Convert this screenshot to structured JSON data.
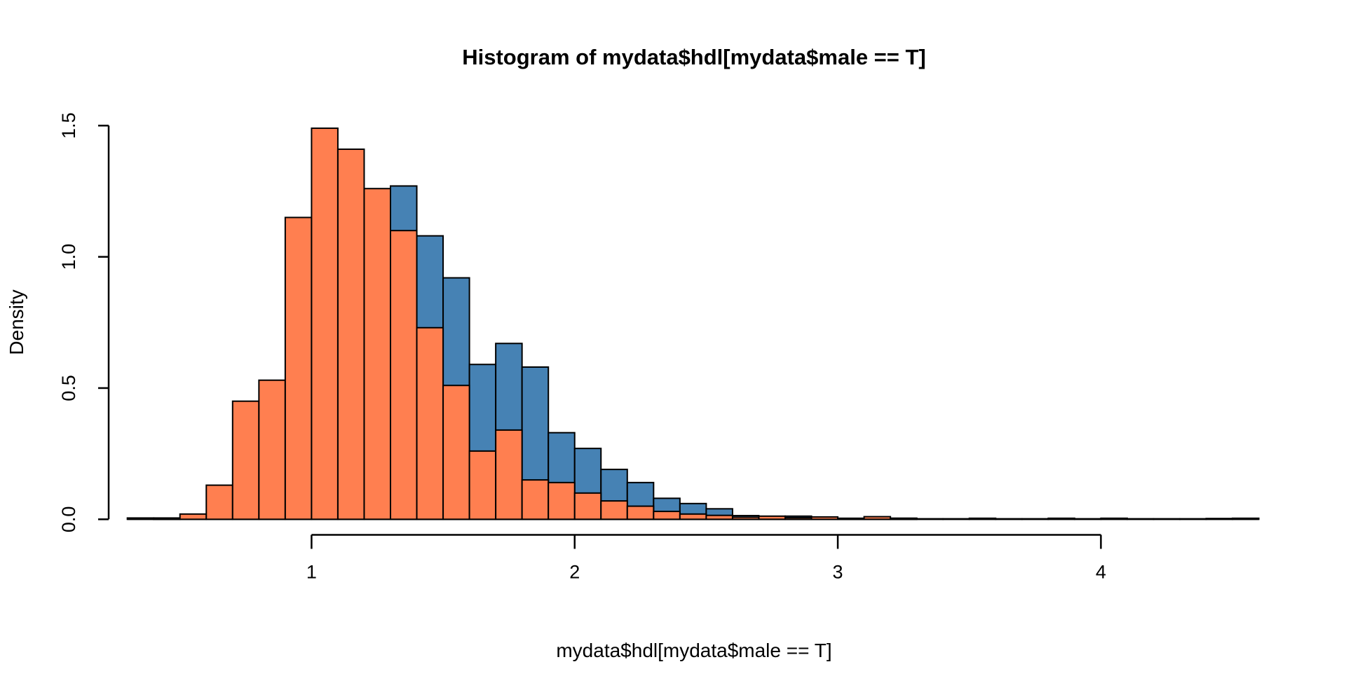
{
  "chart_data": {
    "type": "bar",
    "subtype": "overlaid-density-histogram",
    "title": "Histogram of mydata$hdl[mydata$male == T]",
    "xlabel": "mydata$hdl[mydata$male == T]",
    "ylabel": "Density",
    "grid": false,
    "legend": "none",
    "x_tick_labels": [
      "1",
      "2",
      "3",
      "4"
    ],
    "x_tick_values": [
      1,
      2,
      3,
      4
    ],
    "y_tick_labels": [
      "0.0",
      "0.5",
      "1.0",
      "1.5"
    ],
    "y_tick_values": [
      0.0,
      0.5,
      1.0,
      1.5
    ],
    "xlim": [
      0.3,
      4.6
    ],
    "ylim": [
      0,
      1.5
    ],
    "bin_width": 0.1,
    "bin_left_edges_start": 0.3,
    "bar_border_color": "#000000",
    "axis_color": "#000000",
    "background_color": "#ffffff",
    "series": [
      {
        "name": "blue-histogram-behind",
        "color": "#4682B4",
        "baseline_range": [
          0.3,
          4.6
        ],
        "values": [
          0.005,
          0.002,
          0,
          0,
          0,
          0,
          0,
          0,
          0,
          0,
          1.27,
          1.08,
          0.92,
          0.59,
          0.67,
          0.58,
          0.33,
          0.27,
          0.19,
          0.14,
          0.08,
          0.06,
          0.04,
          0.014,
          0.004,
          0.012,
          0.002,
          0.004,
          0.002,
          0.004,
          0.002,
          0.002,
          0.004,
          0.002,
          0.002,
          0.004,
          0.002,
          0.004,
          0.002,
          0.002,
          0.002,
          0.003,
          0.004
        ]
      },
      {
        "name": "orange-histogram-front",
        "color": "#FF7F50",
        "baseline_range": [
          0.4,
          3.3
        ],
        "values": [
          0,
          0.005,
          0.02,
          0.13,
          0.45,
          0.53,
          1.15,
          1.49,
          1.41,
          1.26,
          1.1,
          0.73,
          0.51,
          0.26,
          0.34,
          0.15,
          0.14,
          0.1,
          0.07,
          0.05,
          0.03,
          0.02,
          0.015,
          0.008,
          0.012,
          0.006,
          0.009,
          0.002,
          0.01,
          0.004,
          0,
          0,
          0,
          0,
          0,
          0,
          0,
          0,
          0,
          0,
          0,
          0,
          0
        ]
      }
    ]
  }
}
